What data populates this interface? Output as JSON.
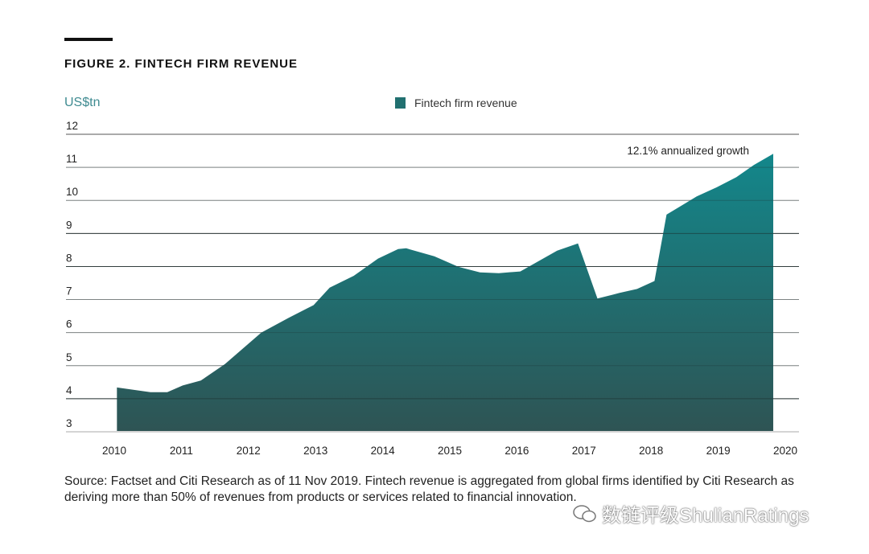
{
  "figure": {
    "title": "FIGURE 2. FINTECH FIRM REVENUE",
    "source": "Source: Factset and Citi Research as of 11 Nov 2019. Fintech revenue is aggregated from global firms identified by Citi Research as deriving more than 50% of revenues from products or services related to financial innovation.",
    "watermark": "数链评级ShulianRatings",
    "watermark_icon": "wechat-icon"
  },
  "chart_data": {
    "type": "area",
    "title": "FIGURE 2. FINTECH FIRM REVENUE",
    "ylabel": "US$tn",
    "xlabel": "",
    "ylim": [
      3,
      12
    ],
    "xlim": [
      2010,
      2020
    ],
    "yticks": [
      "3",
      "4",
      "5",
      "6",
      "7",
      "8",
      "9",
      "10",
      "11",
      "12"
    ],
    "xticks": [
      "2010",
      "2011",
      "2012",
      "2013",
      "2014",
      "2015",
      "2016",
      "2017",
      "2018",
      "2019",
      "2020"
    ],
    "grid": "horizontal",
    "legend_placement": "top-center",
    "annotation": "12.1% annualized growth",
    "colors": {
      "fill_top": "#13878b",
      "fill_bottom": "#2e5454"
    },
    "series": [
      {
        "name": "Fintech firm revenue",
        "x": [
          2010.04,
          2010.54,
          2010.79,
          2011.02,
          2011.29,
          2011.65,
          2012.19,
          2012.6,
          2012.97,
          2013.21,
          2013.57,
          2013.93,
          2014.23,
          2014.35,
          2014.77,
          2015.13,
          2015.45,
          2015.73,
          2016.05,
          2016.6,
          2016.91,
          2017.2,
          2017.53,
          2017.79,
          2018.05,
          2018.23,
          2018.68,
          2018.97,
          2019.27,
          2019.53,
          2019.82
        ],
        "values": [
          4.34,
          4.2,
          4.2,
          4.4,
          4.55,
          5.05,
          6.0,
          6.45,
          6.83,
          7.36,
          7.72,
          8.24,
          8.53,
          8.55,
          8.31,
          7.99,
          7.82,
          7.8,
          7.85,
          8.48,
          8.7,
          7.03,
          7.2,
          7.32,
          7.56,
          9.57,
          10.12,
          10.39,
          10.7,
          11.07,
          11.41
        ]
      }
    ]
  }
}
